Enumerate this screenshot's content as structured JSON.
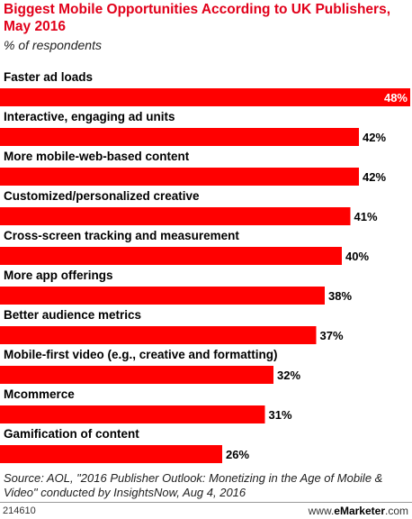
{
  "header": {
    "title": "Biggest Mobile Opportunities According to UK Publishers, May 2016",
    "subtitle": "% of respondents"
  },
  "chart_data": {
    "type": "bar",
    "orientation": "horizontal",
    "categories": [
      "Faster ad loads",
      "Interactive, engaging ad units",
      "More mobile-web-based content",
      "Customized/personalized creative",
      "Cross-screen tracking and measurement",
      "More app offerings",
      "Better audience metrics",
      "Mobile-first video (e.g., creative and formatting)",
      "Mcommerce",
      "Gamification of content"
    ],
    "values": [
      48,
      42,
      42,
      41,
      40,
      38,
      37,
      32,
      31,
      26
    ],
    "value_labels": [
      "48%",
      "42%",
      "42%",
      "41%",
      "40%",
      "38%",
      "37%",
      "32%",
      "31%",
      "26%"
    ],
    "bar_color": "#ff0000",
    "xlim": [
      0,
      48
    ],
    "grid": false
  },
  "footer": {
    "source": "Source: AOL, \"2016 Publisher Outlook: Monetizing in the Age of Mobile & Video\" conducted by InsightsNow, Aug 4, 2016",
    "chart_id": "214610",
    "brand_prefix": "www.",
    "brand_name": "eMarketer",
    "brand_suffix": ".com"
  }
}
